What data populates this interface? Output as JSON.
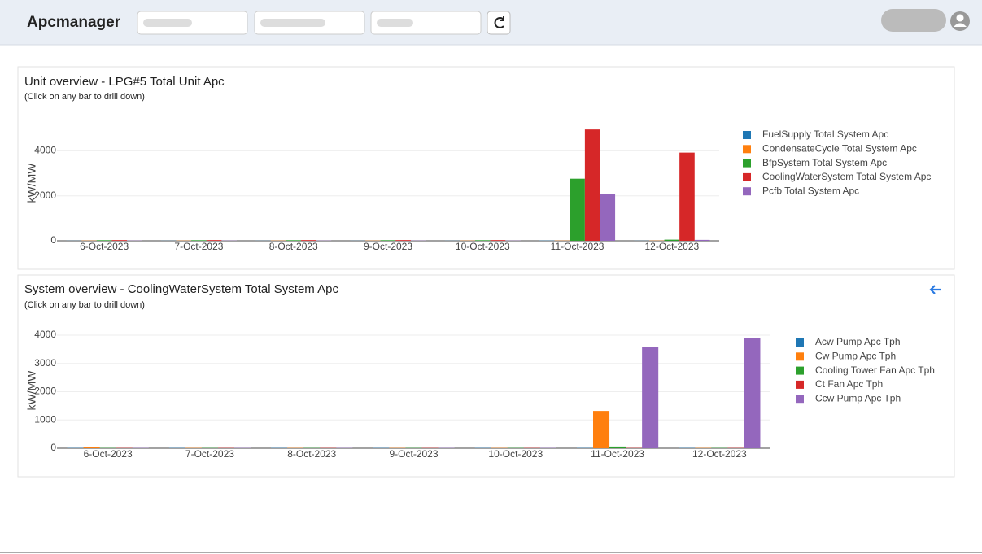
{
  "header": {
    "title": "Apcmanager"
  },
  "chart_data": [
    {
      "type": "bar",
      "title": "Unit overview - LPG#5 Total Unit Apc",
      "subtitle": "(Click on any bar to drill down)",
      "y_label": "kW/MW",
      "categories": [
        "6-Oct-2023",
        "7-Oct-2023",
        "8-Oct-2023",
        "9-Oct-2023",
        "10-Oct-2023",
        "11-Oct-2023",
        "12-Oct-2023"
      ],
      "series": [
        {
          "name": "FuelSupply Total System Apc",
          "color": "#1f77b4",
          "values": [
            5,
            5,
            5,
            5,
            5,
            10,
            5
          ]
        },
        {
          "name": "CondensateCycle Total System Apc",
          "color": "#ff7f0e",
          "values": [
            10,
            10,
            10,
            10,
            10,
            10,
            10
          ]
        },
        {
          "name": "BfpSystem Total System Apc",
          "color": "#2ca02c",
          "values": [
            25,
            25,
            25,
            25,
            25,
            2760,
            50
          ]
        },
        {
          "name": "CoolingWaterSystem Total System Apc",
          "color": "#d62728",
          "values": [
            30,
            30,
            30,
            30,
            30,
            4950,
            3920
          ]
        },
        {
          "name": "Pcfb Total System Apc",
          "color": "#9467bd",
          "values": [
            10,
            10,
            10,
            10,
            10,
            2070,
            40
          ]
        }
      ],
      "ylim": [
        0,
        5100
      ],
      "yticks": [
        0,
        2000,
        4000
      ],
      "grid": true
    },
    {
      "type": "bar",
      "title": "System overview - CoolingWaterSystem Total System Apc",
      "subtitle": "(Click on any bar to drill down)",
      "y_label": "kW/MW",
      "categories": [
        "6-Oct-2023",
        "7-Oct-2023",
        "8-Oct-2023",
        "9-Oct-2023",
        "10-Oct-2023",
        "11-Oct-2023",
        "12-Oct-2023"
      ],
      "series": [
        {
          "name": "Acw Pump Apc Tph",
          "color": "#1f77b4",
          "values": [
            10,
            10,
            10,
            10,
            10,
            10,
            10
          ]
        },
        {
          "name": "Cw Pump Apc Tph",
          "color": "#ff7f0e",
          "values": [
            40,
            10,
            10,
            10,
            10,
            1320,
            10
          ]
        },
        {
          "name": "Cooling Tower Fan Apc Tph",
          "color": "#2ca02c",
          "values": [
            10,
            10,
            10,
            10,
            10,
            60,
            10
          ]
        },
        {
          "name": "Ct Fan Apc Tph",
          "color": "#d62728",
          "values": [
            10,
            10,
            10,
            10,
            10,
            10,
            10
          ]
        },
        {
          "name": "Ccw Pump Apc Tph",
          "color": "#9467bd",
          "values": [
            10,
            10,
            10,
            10,
            10,
            3570,
            3910
          ]
        }
      ],
      "ylim": [
        0,
        4200
      ],
      "yticks": [
        0,
        1000,
        2000,
        3000,
        4000
      ],
      "grid": true
    }
  ]
}
